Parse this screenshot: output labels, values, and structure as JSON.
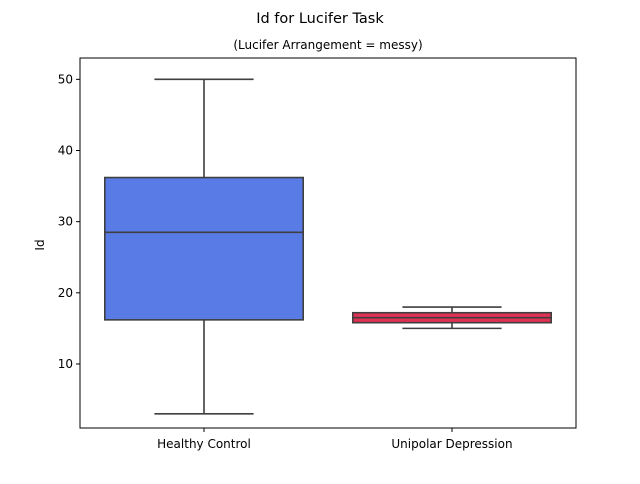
{
  "chart_data": {
    "type": "box",
    "title": "Id for Lucifer Task",
    "subtitle": "(Lucifer Arrangement = messy)",
    "xlabel": "",
    "ylabel": "Id",
    "ylim": [
      1,
      53
    ],
    "yticks": [
      10,
      20,
      30,
      40,
      50
    ],
    "grid": false,
    "categories": [
      "Healthy Control",
      "Unipolar Depression"
    ],
    "boxes": [
      {
        "category": "Healthy Control",
        "whisker_low": 3,
        "q1": 16.2,
        "median": 28.5,
        "q3": 36.2,
        "whisker_high": 50,
        "color": "#4169e1"
      },
      {
        "category": "Unipolar Depression",
        "whisker_low": 15,
        "q1": 15.8,
        "median": 16.5,
        "q3": 17.2,
        "whisker_high": 18,
        "color": "#dc143c"
      }
    ]
  }
}
